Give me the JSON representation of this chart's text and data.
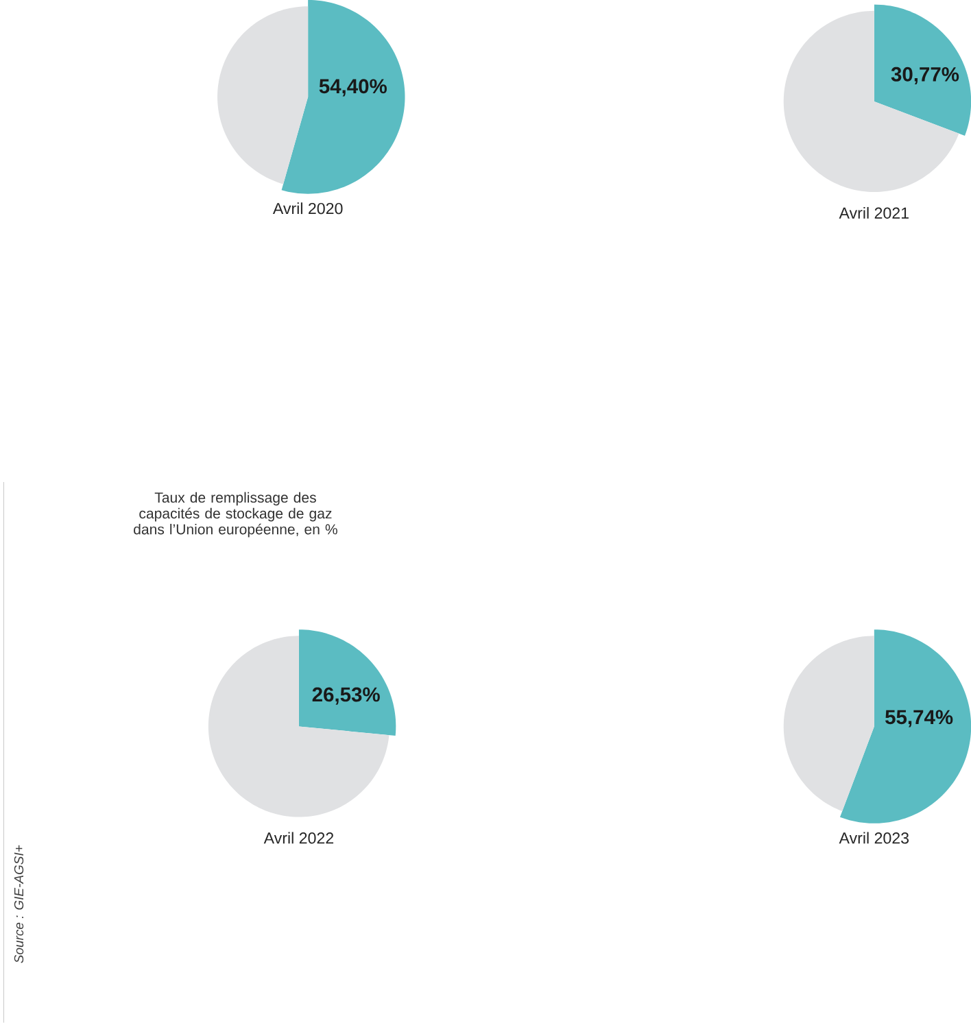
{
  "chart_data": [
    {
      "type": "other",
      "title": "Taux de remplissage des capacités de stockage de gaz dans l’Union européenne, en %",
      "annotations": [
        "Source : GIE-AGSI+"
      ]
    },
    {
      "type": "pie",
      "title": "Avril 2020",
      "categories": [
        null,
        null
      ],
      "values": [
        54.4,
        45.6
      ],
      "colors": [
        "#5bbcc2",
        "#e0e1e3"
      ],
      "value_labels": [
        "54,40%",
        null
      ]
    },
    {
      "type": "pie",
      "title": "Avril 2021",
      "categories": [
        null,
        null
      ],
      "values": [
        30.77,
        69.23
      ],
      "colors": [
        "#5bbcc2",
        "#e0e1e3"
      ],
      "value_labels": [
        "30,77%",
        null
      ]
    },
    {
      "type": "pie",
      "title": "Avril 2022",
      "categories": [
        null,
        null
      ],
      "values": [
        26.53,
        73.47
      ],
      "colors": [
        "#5bbcc2",
        "#e0e1e3"
      ],
      "value_labels": [
        "26,53%",
        null
      ]
    },
    {
      "type": "pie",
      "title": "Avril 2023",
      "categories": [
        null,
        null
      ],
      "values": [
        55.74,
        44.26
      ],
      "colors": [
        "#5bbcc2",
        "#e0e1e3"
      ],
      "value_labels": [
        "55,74%",
        null
      ]
    }
  ]
}
